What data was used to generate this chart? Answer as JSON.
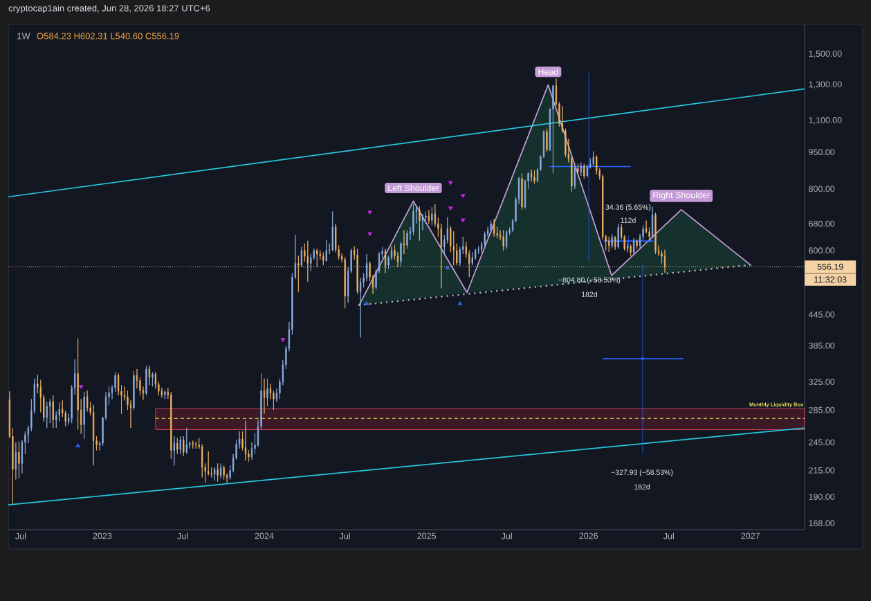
{
  "chart_data": {
    "type": "candlestick",
    "title": "1W",
    "subtitle": "O584.23 H602.31 L540.60 C556.19",
    "annotations": [
      "cryptocap1ain created, Jun 28, 2026 18:27 UTC+6",
      "11:32:03",
      {
        "text": "Head",
        "x": "2025-10-02",
        "y": 1300
      },
      {
        "text": "Left Shoulder",
        "x": "2024-12-02",
        "y": 756
      },
      {
        "text": "Right Shoulder",
        "x": "2026-07-29",
        "y": 726
      },
      "−804.80 (−58.53%)",
      "182d",
      "34.36 (5.65%)",
      "112d",
      "−327.93 (−58.53%)",
      "182d"
    ],
    "x": [
      "2022-06-06",
      "2022-06-13",
      "2022-06-20",
      "2022-06-27",
      "2022-07-04",
      "2022-07-11",
      "2022-07-18",
      "2022-07-25",
      "2022-08-01",
      "2022-08-08",
      "2022-08-15",
      "2022-08-22",
      "2022-08-29",
      "2022-09-05",
      "2022-09-12",
      "2022-09-19",
      "2022-09-26",
      "2022-10-03",
      "2022-10-10",
      "2022-10-17",
      "2022-10-24",
      "2022-10-31",
      "2022-11-07",
      "2022-11-14",
      "2022-11-21",
      "2022-11-28",
      "2022-12-05",
      "2022-12-12",
      "2022-12-19",
      "2022-12-26",
      "2023-01-02",
      "2023-01-09",
      "2023-01-16",
      "2023-01-23",
      "2023-01-30",
      "2023-02-06",
      "2023-02-13",
      "2023-02-20",
      "2023-02-27",
      "2023-03-06",
      "2023-03-13",
      "2023-03-20",
      "2023-03-27",
      "2023-04-03",
      "2023-04-10",
      "2023-04-17",
      "2023-04-24",
      "2023-05-01",
      "2023-05-08",
      "2023-05-15",
      "2023-05-22",
      "2023-05-29",
      "2023-06-05",
      "2023-06-12",
      "2023-06-19",
      "2023-06-26",
      "2023-07-03",
      "2023-07-10",
      "2023-07-17",
      "2023-07-24",
      "2023-07-31",
      "2023-08-07",
      "2023-08-14",
      "2023-08-21",
      "2023-08-28",
      "2023-09-04",
      "2023-09-11",
      "2023-09-18",
      "2023-09-25",
      "2023-10-02",
      "2023-10-09",
      "2023-10-16",
      "2023-10-23",
      "2023-10-30",
      "2023-11-06",
      "2023-11-13",
      "2023-11-20",
      "2023-11-27",
      "2023-12-04",
      "2023-12-11",
      "2023-12-18",
      "2023-12-25",
      "2024-01-01",
      "2024-01-08",
      "2024-01-15",
      "2024-01-22",
      "2024-01-29",
      "2024-02-05",
      "2024-02-12",
      "2024-02-19",
      "2024-02-26",
      "2024-03-04",
      "2024-03-11",
      "2024-03-18",
      "2024-03-25",
      "2024-04-01",
      "2024-04-08",
      "2024-04-15",
      "2024-04-22",
      "2024-04-29",
      "2024-05-06",
      "2024-05-13",
      "2024-05-20",
      "2024-05-27",
      "2024-06-03",
      "2024-06-10",
      "2024-06-17",
      "2024-06-24",
      "2024-07-01",
      "2024-07-08",
      "2024-07-15",
      "2024-07-22",
      "2024-07-29",
      "2024-08-05",
      "2024-08-12",
      "2024-08-19",
      "2024-08-26",
      "2024-09-02",
      "2024-09-09",
      "2024-09-16",
      "2024-09-23",
      "2024-09-30",
      "2024-10-07",
      "2024-10-14",
      "2024-10-21",
      "2024-10-28",
      "2024-11-04",
      "2024-11-11",
      "2024-11-18",
      "2024-11-25",
      "2024-12-02",
      "2024-12-09",
      "2024-12-16",
      "2024-12-23",
      "2024-12-30",
      "2025-01-06",
      "2025-01-13",
      "2025-01-20",
      "2025-01-27",
      "2025-02-03",
      "2025-02-10",
      "2025-02-17",
      "2025-02-24",
      "2025-03-03",
      "2025-03-10",
      "2025-03-17",
      "2025-03-24",
      "2025-03-31",
      "2025-04-07",
      "2025-04-14",
      "2025-04-21",
      "2025-04-28",
      "2025-05-05",
      "2025-05-12",
      "2025-05-19",
      "2025-05-26",
      "2025-06-02",
      "2025-06-09",
      "2025-06-16",
      "2025-06-23",
      "2025-06-30",
      "2025-07-07",
      "2025-07-14",
      "2025-07-21",
      "2025-07-28",
      "2025-08-04",
      "2025-08-11",
      "2025-08-18",
      "2025-08-25",
      "2025-09-01",
      "2025-09-08",
      "2025-09-15",
      "2025-09-22",
      "2025-09-29",
      "2025-10-06",
      "2025-10-13",
      "2025-10-20",
      "2025-10-27",
      "2025-11-03",
      "2025-11-10",
      "2025-11-17",
      "2025-11-24",
      "2025-12-01",
      "2025-12-08",
      "2025-12-15",
      "2025-12-22",
      "2025-12-29",
      "2026-01-05",
      "2026-01-12",
      "2026-01-19",
      "2026-01-26",
      "2026-02-02",
      "2026-02-09",
      "2026-02-16",
      "2026-02-23",
      "2026-03-02",
      "2026-03-09",
      "2026-03-16",
      "2026-03-23",
      "2026-03-30",
      "2026-04-06",
      "2026-04-13",
      "2026-04-20",
      "2026-04-27",
      "2026-05-04",
      "2026-05-11",
      "2026-05-18",
      "2026-05-25",
      "2026-06-01",
      "2026-06-08",
      "2026-06-15",
      "2026-06-22"
    ],
    "ohlc": [
      [
        299,
        311,
        250,
        252
      ],
      [
        252,
        262,
        184,
        216
      ],
      [
        216,
        245,
        206,
        234
      ],
      [
        234,
        246,
        207,
        222
      ],
      [
        222,
        248,
        212,
        245
      ],
      [
        245,
        258,
        232,
        254
      ],
      [
        254,
        265,
        244,
        262
      ],
      [
        262,
        300,
        258,
        284
      ],
      [
        284,
        330,
        280,
        322
      ],
      [
        322,
        336,
        308,
        317
      ],
      [
        317,
        328,
        282,
        302
      ],
      [
        302,
        306,
        270,
        275
      ],
      [
        275,
        296,
        262,
        290
      ],
      [
        290,
        300,
        268,
        296
      ],
      [
        296,
        305,
        262,
        272
      ],
      [
        272,
        283,
        262,
        278
      ],
      [
        278,
        295,
        270,
        286
      ],
      [
        286,
        298,
        276,
        281
      ],
      [
        281,
        284,
        264,
        270
      ],
      [
        270,
        280,
        266,
        274
      ],
      [
        274,
        320,
        268,
        316
      ],
      [
        316,
        361,
        306,
        338
      ],
      [
        338,
        398,
        260,
        285
      ],
      [
        285,
        300,
        255,
        266
      ],
      [
        266,
        310,
        249,
        303
      ],
      [
        303,
        312,
        283,
        288
      ],
      [
        288,
        296,
        278,
        282
      ],
      [
        282,
        292,
        220,
        247
      ],
      [
        247,
        252,
        236,
        242
      ],
      [
        242,
        246,
        236,
        244
      ],
      [
        244,
        276,
        241,
        275
      ],
      [
        275,
        310,
        272,
        303
      ],
      [
        303,
        318,
        292,
        309
      ],
      [
        309,
        320,
        300,
        316
      ],
      [
        316,
        340,
        310,
        335
      ],
      [
        335,
        338,
        305,
        311
      ],
      [
        311,
        320,
        280,
        305
      ],
      [
        305,
        318,
        298,
        303
      ],
      [
        303,
        312,
        285,
        292
      ],
      [
        292,
        298,
        262,
        288
      ],
      [
        288,
        342,
        285,
        335
      ],
      [
        335,
        345,
        315,
        327
      ],
      [
        327,
        332,
        305,
        312
      ],
      [
        312,
        318,
        299,
        308
      ],
      [
        308,
        350,
        305,
        345
      ],
      [
        345,
        350,
        320,
        332
      ],
      [
        332,
        340,
        318,
        337
      ],
      [
        337,
        340,
        315,
        321
      ],
      [
        321,
        325,
        305,
        311
      ],
      [
        311,
        316,
        302,
        306
      ],
      [
        306,
        313,
        300,
        310
      ],
      [
        310,
        316,
        300,
        306
      ],
      [
        306,
        310,
        227,
        236
      ],
      [
        236,
        252,
        220,
        244
      ],
      [
        244,
        250,
        232,
        237
      ],
      [
        237,
        252,
        232,
        248
      ],
      [
        248,
        252,
        230,
        234
      ],
      [
        234,
        262,
        232,
        242
      ],
      [
        242,
        246,
        238,
        244
      ],
      [
        244,
        247,
        238,
        243
      ],
      [
        243,
        246,
        238,
        242
      ],
      [
        242,
        250,
        238,
        240
      ],
      [
        240,
        243,
        208,
        218
      ],
      [
        218,
        222,
        203,
        214
      ],
      [
        214,
        235,
        210,
        212
      ],
      [
        212,
        218,
        208,
        211
      ],
      [
        211,
        218,
        205,
        216
      ],
      [
        216,
        222,
        204,
        210
      ],
      [
        210,
        222,
        207,
        218
      ],
      [
        218,
        220,
        206,
        210
      ],
      [
        210,
        212,
        203,
        208
      ],
      [
        208,
        220,
        206,
        215
      ],
      [
        215,
        232,
        213,
        228
      ],
      [
        228,
        248,
        226,
        243
      ],
      [
        243,
        258,
        238,
        249
      ],
      [
        249,
        258,
        236,
        239
      ],
      [
        239,
        271,
        225,
        232
      ],
      [
        232,
        236,
        224,
        229
      ],
      [
        229,
        245,
        226,
        238
      ],
      [
        238,
        256,
        232,
        242
      ],
      [
        242,
        272,
        240,
        264
      ],
      [
        264,
        338,
        260,
        312
      ],
      [
        312,
        330,
        280,
        302
      ],
      [
        302,
        330,
        290,
        315
      ],
      [
        315,
        322,
        300,
        308
      ],
      [
        308,
        312,
        285,
        300
      ],
      [
        300,
        315,
        296,
        308
      ],
      [
        308,
        330,
        300,
        325
      ],
      [
        325,
        360,
        320,
        352
      ],
      [
        352,
        385,
        345,
        380
      ],
      [
        380,
        430,
        375,
        415
      ],
      [
        415,
        540,
        405,
        530
      ],
      [
        530,
        645,
        525,
        565
      ],
      [
        565,
        585,
        495,
        560
      ],
      [
        560,
        610,
        555,
        600
      ],
      [
        600,
        620,
        570,
        584
      ],
      [
        584,
        628,
        519,
        565
      ],
      [
        565,
        590,
        545,
        580
      ],
      [
        580,
        605,
        575,
        600
      ],
      [
        600,
        605,
        555,
        590
      ],
      [
        590,
        600,
        575,
        585
      ],
      [
        585,
        595,
        560,
        572
      ],
      [
        572,
        630,
        570,
        600
      ],
      [
        600,
        620,
        590,
        602
      ],
      [
        602,
        720,
        598,
        670
      ],
      [
        670,
        680,
        595,
        602
      ],
      [
        602,
        615,
        575,
        584
      ],
      [
        584,
        592,
        568,
        576
      ],
      [
        576,
        582,
        458,
        485
      ],
      [
        485,
        555,
        470,
        545
      ],
      [
        545,
        605,
        540,
        601
      ],
      [
        601,
        612,
        575,
        588
      ],
      [
        588,
        605,
        490,
        495
      ],
      [
        495,
        528,
        400,
        518
      ],
      [
        518,
        540,
        505,
        528
      ],
      [
        528,
        590,
        520,
        565
      ],
      [
        565,
        570,
        520,
        530
      ],
      [
        530,
        535,
        490,
        505
      ],
      [
        505,
        550,
        500,
        545
      ],
      [
        545,
        595,
        540,
        590
      ],
      [
        590,
        610,
        580,
        598
      ],
      [
        598,
        605,
        540,
        560
      ],
      [
        560,
        585,
        550,
        580
      ],
      [
        580,
        612,
        575,
        600
      ],
      [
        600,
        615,
        575,
        585
      ],
      [
        585,
        595,
        555,
        570
      ],
      [
        570,
        625,
        555,
        620
      ],
      [
        620,
        660,
        590,
        615
      ],
      [
        615,
        660,
        605,
        650
      ],
      [
        650,
        670,
        630,
        655
      ],
      [
        655,
        745,
        645,
        720
      ],
      [
        720,
        740,
        680,
        725
      ],
      [
        725,
        738,
        628,
        690
      ],
      [
        690,
        712,
        660,
        700
      ],
      [
        700,
        720,
        680,
        705
      ],
      [
        705,
        725,
        680,
        690
      ],
      [
        690,
        735,
        675,
        712
      ],
      [
        712,
        745,
        670,
        680
      ],
      [
        680,
        700,
        640,
        665
      ],
      [
        665,
        680,
        503,
        610
      ],
      [
        610,
        645,
        590,
        630
      ],
      [
        630,
        701,
        620,
        665
      ],
      [
        665,
        672,
        595,
        612
      ],
      [
        612,
        656,
        560,
        600
      ],
      [
        600,
        620,
        560,
        566
      ],
      [
        566,
        610,
        558,
        603
      ],
      [
        603,
        640,
        590,
        612
      ],
      [
        612,
        625,
        580,
        590
      ],
      [
        590,
        600,
        530,
        565
      ],
      [
        565,
        595,
        560,
        580
      ],
      [
        580,
        605,
        575,
        600
      ],
      [
        600,
        612,
        590,
        603
      ],
      [
        603,
        625,
        595,
        618
      ],
      [
        618,
        655,
        612,
        648
      ],
      [
        648,
        670,
        640,
        660
      ],
      [
        660,
        690,
        650,
        680
      ],
      [
        680,
        695,
        640,
        650
      ],
      [
        650,
        670,
        635,
        645
      ],
      [
        645,
        660,
        630,
        640
      ],
      [
        640,
        660,
        600,
        612
      ],
      [
        612,
        660,
        605,
        652
      ],
      [
        652,
        668,
        645,
        660
      ],
      [
        660,
        695,
        655,
        689
      ],
      [
        689,
        770,
        685,
        762
      ],
      [
        762,
        845,
        745,
        840
      ],
      [
        840,
        860,
        725,
        735
      ],
      [
        735,
        835,
        730,
        830
      ],
      [
        830,
        865,
        800,
        860
      ],
      [
        860,
        875,
        828,
        845
      ],
      [
        845,
        872,
        820,
        830
      ],
      [
        830,
        880,
        825,
        875
      ],
      [
        875,
        935,
        870,
        930
      ],
      [
        930,
        1050,
        925,
        1045
      ],
      [
        1045,
        1060,
        950,
        960
      ],
      [
        960,
        1165,
        955,
        1160
      ],
      [
        1160,
        1300,
        860,
        1295
      ],
      [
        1295,
        1340,
        1180,
        1190
      ],
      [
        1190,
        1200,
        1070,
        1085
      ],
      [
        1085,
        1177,
        1040,
        1050
      ],
      [
        1050,
        1060,
        928,
        940
      ],
      [
        940,
        1010,
        905,
        920
      ],
      [
        920,
        930,
        790,
        810
      ],
      [
        810,
        890,
        800,
        880
      ],
      [
        880,
        900,
        855,
        865
      ],
      [
        865,
        905,
        850,
        890
      ],
      [
        890,
        900,
        840,
        850
      ],
      [
        850,
        895,
        845,
        888
      ],
      [
        888,
        922,
        880,
        898
      ],
      [
        898,
        953,
        890,
        928
      ],
      [
        928,
        935,
        855,
        870
      ],
      [
        870,
        880,
        835,
        848
      ],
      [
        848,
        855,
        632,
        640
      ],
      [
        640,
        646,
        600,
        627
      ],
      [
        627,
        640,
        596,
        614
      ],
      [
        614,
        648,
        606,
        638
      ],
      [
        638,
        642,
        602,
        610
      ],
      [
        610,
        680,
        605,
        668
      ],
      [
        668,
        678,
        632,
        640
      ],
      [
        640,
        645,
        600,
        605
      ],
      [
        605,
        622,
        595,
        613
      ],
      [
        613,
        618,
        585,
        595
      ],
      [
        595,
        635,
        590,
        627
      ],
      [
        627,
        632,
        605,
        614
      ],
      [
        614,
        648,
        608,
        640
      ],
      [
        640,
        675,
        630,
        664
      ],
      [
        664,
        690,
        650,
        655
      ],
      [
        655,
        668,
        625,
        640
      ],
      [
        640,
        736,
        635,
        709
      ],
      [
        709,
        716,
        590,
        598
      ],
      [
        598,
        614,
        585,
        592
      ],
      [
        592,
        600,
        565,
        584
      ],
      [
        584.23,
        602.31,
        540.6,
        556.19
      ]
    ],
    "colors": [
      "#f2b461",
      "#f2b461",
      "#8fb3e6",
      "#f2b461",
      "#8fb3e6",
      "#8fb3e6",
      "#8fb3e6",
      "#8fb3e6",
      "#8fb3e6",
      "#f2b461",
      "#f2b461",
      "#f2b461",
      "#8fb3e6",
      "#8fb3e6",
      "#f2b461",
      "#8fb3e6",
      "#8fb3e6",
      "#f2b461",
      "#f2b461",
      "#8fb3e6",
      "#8fb3e6",
      "#8fb3e6",
      "#f2b461",
      "#f2b461",
      "#8fb3e6",
      "#f2b461",
      "#f2b461",
      "#f2b461",
      "#f2b461",
      "#8fb3e6",
      "#8fb3e6",
      "#8fb3e6",
      "#8fb3e6",
      "#8fb3e6",
      "#8fb3e6",
      "#f2b461",
      "#f2b461",
      "#f2b461",
      "#f2b461",
      "#f2b461",
      "#8fb3e6",
      "#f2b461",
      "#f2b461",
      "#f2b461",
      "#8fb3e6",
      "#f2b461",
      "#8fb3e6",
      "#f2b461",
      "#f2b461",
      "#f2b461",
      "#8fb3e6",
      "#f2b461",
      "#f2b461",
      "#8fb3e6",
      "#f2b461",
      "#8fb3e6",
      "#f2b461",
      "#8fb3e6",
      "#8fb3e6",
      "#f2b461",
      "#f2b461",
      "#f2b461",
      "#f2b461",
      "#f2b461",
      "#f2b461",
      "#f2b461",
      "#8fb3e6",
      "#f2b461",
      "#8fb3e6",
      "#f2b461",
      "#f2b461",
      "#8fb3e6",
      "#8fb3e6",
      "#8fb3e6",
      "#8fb3e6",
      "#f2b461",
      "#f2b461",
      "#f2b461",
      "#8fb3e6",
      "#8fb3e6",
      "#8fb3e6",
      "#8fb3e6",
      "#f2b461",
      "#8fb3e6",
      "#f2b461",
      "#f2b461",
      "#8fb3e6",
      "#8fb3e6",
      "#8fb3e6",
      "#8fb3e6",
      "#8fb3e6",
      "#8fb3e6",
      "#8fb3e6",
      "#f2b461",
      "#8fb3e6",
      "#f2b461",
      "#f2b461",
      "#8fb3e6",
      "#8fb3e6",
      "#f2b461",
      "#f2b461",
      "#f2b461",
      "#8fb3e6",
      "#8fb3e6",
      "#8fb3e6",
      "#f2b461",
      "#f2b461",
      "#f2b461",
      "#f2b461",
      "#8fb3e6",
      "#8fb3e6",
      "#f2b461",
      "#f2b461",
      "#8fb3e6",
      "#8fb3e6",
      "#8fb3e6",
      "#f2b461",
      "#f2b461",
      "#8fb3e6",
      "#8fb3e6",
      "#8fb3e6",
      "#f2b461",
      "#8fb3e6",
      "#8fb3e6",
      "#f2b461",
      "#f2b461",
      "#8fb3e6",
      "#f2b461",
      "#8fb3e6",
      "#8fb3e6",
      "#8fb3e6",
      "#8fb3e6",
      "#f2b461",
      "#8fb3e6",
      "#8fb3e6",
      "#f2b461",
      "#8fb3e6",
      "#f2b461",
      "#f2b461",
      "#f2b461",
      "#8fb3e6",
      "#8fb3e6",
      "#f2b461",
      "#f2b461",
      "#f2b461",
      "#8fb3e6",
      "#8fb3e6",
      "#f2b461",
      "#f2b461",
      "#8fb3e6",
      "#8fb3e6",
      "#8fb3e6",
      "#8fb3e6",
      "#8fb3e6",
      "#8fb3e6",
      "#8fb3e6",
      "#f2b461",
      "#f2b461",
      "#f2b461",
      "#f2b461",
      "#8fb3e6",
      "#8fb3e6",
      "#8fb3e6",
      "#8fb3e6",
      "#8fb3e6",
      "#f2b461",
      "#8fb3e6",
      "#8fb3e6",
      "#f2b461",
      "#f2b461",
      "#8fb3e6",
      "#8fb3e6",
      "#8fb3e6",
      "#f2b461",
      "#8fb3e6",
      "#8fb3e6",
      "#f2b461",
      "#f2b461",
      "#f2b461",
      "#f2b461",
      "#f2b461",
      "#f2b461",
      "#8fb3e6",
      "#f2b461",
      "#8fb3e6",
      "#f2b461",
      "#8fb3e6",
      "#8fb3e6",
      "#8fb3e6",
      "#f2b461",
      "#f2b461",
      "#f2b461",
      "#f2b461",
      "#f2b461",
      "#8fb3e6",
      "#f2b461",
      "#8fb3e6",
      "#f2b461",
      "#f2b461",
      "#8fb3e6",
      "#f2b461",
      "#8fb3e6",
      "#f2b461",
      "#8fb3e6",
      "#8fb3e6",
      "#f2b461",
      "#f2b461",
      "#8fb3e6",
      "#f2b461",
      "#f2b461",
      "#f2b461",
      "#f2b461"
    ],
    "xlim": [
      "2022-06-03",
      "2027-05-03"
    ],
    "ylim": [
      163,
      1720
    ],
    "log": true,
    "xticks": [
      {
        "value": "2022-07-01",
        "label": "Jul"
      },
      {
        "value": "2023-01-01",
        "label": "2023"
      },
      {
        "value": "2023-07-01",
        "label": "Jul"
      },
      {
        "value": "2024-01-01",
        "label": "2024"
      },
      {
        "value": "2024-07-01",
        "label": "Jul"
      },
      {
        "value": "2025-01-01",
        "label": "2025"
      },
      {
        "value": "2025-07-01",
        "label": "Jul"
      },
      {
        "value": "2026-01-01",
        "label": "2026"
      },
      {
        "value": "2026-07-01",
        "label": "Jul"
      },
      {
        "value": "2027-01-01",
        "label": "2027"
      }
    ],
    "yticks": [
      {
        "value": 168,
        "label": "168.00"
      },
      {
        "value": 190,
        "label": "190.00"
      },
      {
        "value": 215,
        "label": "215.00"
      },
      {
        "value": 245,
        "label": "245.00"
      },
      {
        "value": 285,
        "label": "285.00"
      },
      {
        "value": 325,
        "label": "325.00"
      },
      {
        "value": 385,
        "label": "385.00"
      },
      {
        "value": 445,
        "label": "445.00"
      },
      {
        "value": 600,
        "label": "600.00"
      },
      {
        "value": 680,
        "label": "680.00"
      },
      {
        "value": 800,
        "label": "800.00"
      },
      {
        "value": 950,
        "label": "950.00"
      },
      {
        "value": 1100,
        "label": "1,100.00"
      },
      {
        "value": 1300,
        "label": "1,300.00"
      },
      {
        "value": 1500,
        "label": "1,500.00"
      }
    ],
    "ref_lines": [
      {
        "axis": "y",
        "value": 556.19,
        "label": "556.19",
        "color": "#f6d3a4",
        "line_style": "dotted"
      }
    ],
    "series": [
      {
        "type": "line",
        "name": "Monthly Liquidity Box",
        "color": "#f2e15b",
        "line_style": "dashed",
        "x": [
          "2023-05-01",
          "2027-05-03"
        ],
        "values": [
          274,
          274
        ],
        "lower": [
          260,
          260
        ],
        "upper": [
          287,
          287
        ]
      },
      {
        "type": "line",
        "color": "#c69fd9",
        "x": [
          "2024-08-02",
          "2024-12-02",
          "2025-04-02",
          "2025-10-02",
          "2026-02-22",
          "2026-07-29",
          "2027-01-01"
        ],
        "values": [
          465,
          756,
          493,
          1300,
          534,
          726,
          561
        ],
        "lower": [
          465,
          478,
          493,
          509,
          525,
          543,
          561
        ],
        "upper": [
          465,
          756,
          493,
          1300,
          534,
          726,
          561
        ]
      },
      {
        "type": "line",
        "color": "#26c6da",
        "x": [
          "2022-06-03",
          "2027-05-03"
        ],
        "values": [
          771,
          1276
        ]
      },
      {
        "type": "line",
        "color": "#26c6da",
        "x": [
          "2022-06-03",
          "2027-05-03"
        ],
        "values": [
          183,
          262
        ]
      },
      {
        "type": "line",
        "color": "#b2b5be",
        "line_style": "dotted",
        "x": [
          "2024-08-02",
          "2027-01-01"
        ],
        "values": [
          465,
          561
        ]
      },
      {
        "type": "line",
        "color": "#2962ff",
        "x": [
          "2025-10-06",
          "2026-04-06"
        ],
        "values": [
          888,
          888
        ]
      },
      {
        "type": "line",
        "color": "#2962ff",
        "x": [
          "2026-02-02",
          "2026-08-03"
        ],
        "values": [
          362,
          362
        ]
      },
      {
        "type": "line",
        "color": "#2962ff",
        "x": [
          "2026-02-04",
          "2026-05-27"
        ],
        "values": [
          627,
          627
        ]
      },
      {
        "type": "scatter",
        "color": "#2962ff",
        "marker": "square",
        "x": [
          "2026-01-01T12:00",
          "2026-05-03",
          "2026-04-01"
        ],
        "values": [
          888,
          362,
          627
        ],
        "errors": [
          [
            570,
            1375
          ],
          [
            232,
            560
          ],
          [
            608,
            642
          ]
        ]
      },
      {
        "type": "scatter",
        "color": "#c828e8",
        "marker": "triangle",
        "x": [
          "2022-11-14",
          "2024-02-12",
          "2024-08-26",
          "2024-08-26",
          "2025-02-24",
          "2025-02-24",
          "2025-03-24",
          "2025-03-24"
        ],
        "values": [
          318,
          396,
          718,
          649,
          824,
          732,
          776,
          692
        ]
      },
      {
        "type": "scatter",
        "color": "#2f66f5",
        "marker": "triangle",
        "x": [
          "2022-11-07",
          "2024-08-19",
          "2025-02-17",
          "2025-03-17"
        ],
        "values": [
          241,
          468,
          553,
          468
        ]
      }
    ]
  }
}
